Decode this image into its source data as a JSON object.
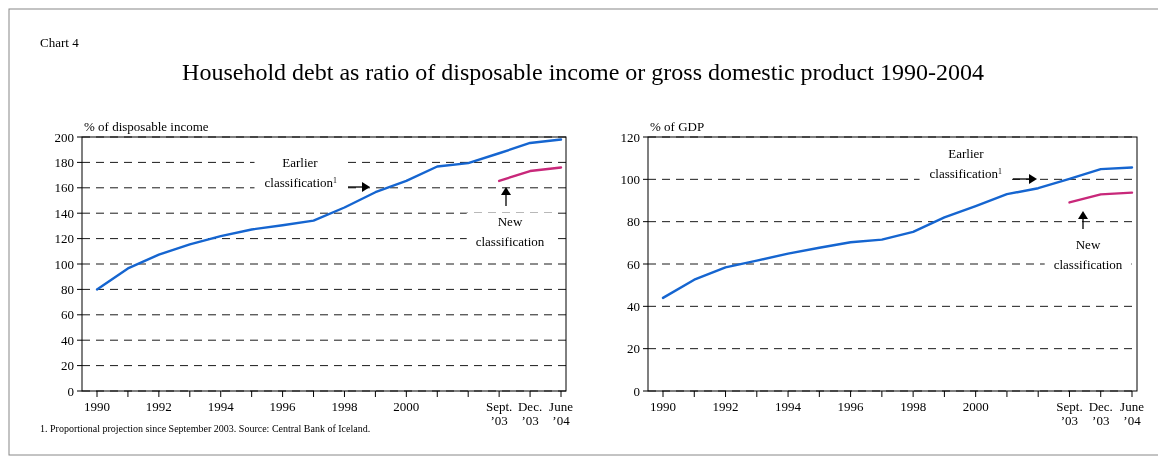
{
  "chart_data": [
    {
      "type": "line",
      "title": "Household debt as ratio of disposable income or gross domestic product 1990-2004",
      "ylabel": "% of disposable income",
      "categories": [
        "1990",
        null,
        "1992",
        null,
        "1994",
        null,
        "1996",
        null,
        "1998",
        null,
        "2000",
        null,
        null,
        "Sept.\n’03",
        "Dec.\n’03",
        "June\n’04"
      ],
      "series": [
        {
          "color": "#1565d0",
          "values": [
            80,
            96.5,
            107.4,
            115.5,
            121.9,
            127.2,
            130.5,
            134.2,
            144.5,
            156.5,
            165.4,
            176.8,
            179.4,
            187.2,
            195.3,
            198
          ]
        },
        {
          "color": "#c8287a",
          "values": [
            null,
            null,
            null,
            null,
            null,
            null,
            null,
            null,
            null,
            null,
            null,
            null,
            null,
            165.4,
            173.2,
            176
          ]
        }
      ],
      "ylim": [
        0,
        200
      ],
      "yticks": [
        0,
        20,
        40,
        60,
        80,
        100,
        120,
        140,
        160,
        180,
        200
      ],
      "grid": "y",
      "annotations": [
        "Earlier classification$^{1}$",
        "New classification",
        "Chart 4",
        "1. Proportional projection since September 2003. Source: Central Bank of Iceland."
      ]
    },
    {
      "type": "line",
      "ylabel": "% of GDP",
      "categories": [
        "1990",
        null,
        "1992",
        null,
        "1994",
        null,
        "1996",
        null,
        "1998",
        null,
        "2000",
        null,
        null,
        "Sept.\n’03",
        "Dec.\n’03",
        "June\n’04"
      ],
      "series": [
        {
          "color": "#1565d0",
          "values": [
            44,
            52.6,
            58.4,
            61.6,
            64.9,
            67.7,
            70.3,
            71.5,
            75.2,
            82,
            87.4,
            93,
            95.8,
            100.2,
            104.8,
            105.6
          ]
        },
        {
          "color": "#c8287a",
          "values": [
            null,
            null,
            null,
            null,
            null,
            null,
            null,
            null,
            null,
            null,
            null,
            null,
            null,
            89.1,
            92.9,
            93.7
          ]
        }
      ],
      "ylim": [
        0,
        120
      ],
      "yticks": [
        0,
        20,
        40,
        60,
        80,
        100,
        120
      ],
      "grid": "y",
      "annotations": [
        "Earlier classification$^{1}$",
        "New classification"
      ]
    }
  ]
}
